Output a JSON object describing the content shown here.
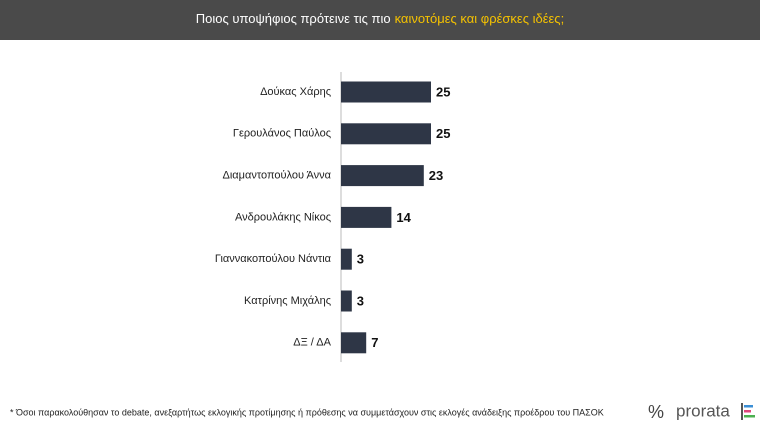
{
  "chart_data": {
    "type": "bar",
    "orientation": "horizontal",
    "title": "Ποιος υποψήφιος πρότεινε τις πιο",
    "title_highlight": "καινοτόμες και φρέσκες ιδέες;",
    "categories": [
      "Δούκας Χάρης",
      "Γερουλάνος Παύλος",
      "Διαμαντοπούλου Άννα",
      "Ανδρουλάκης Νίκος",
      "Γιαννακοπούλου Νάντια",
      "Κατρίνης Μιχάλης",
      "ΔΞ / ΔΑ"
    ],
    "values": [
      25,
      25,
      23,
      14,
      3,
      3,
      7
    ],
    "color": "#2e3646",
    "footnote": "* Όσοι παρακολούθησαν το debate, ανεξαρτήτως εκλογικής προτίμησης ή πρόθεσης να συμμετάσχουν στις εκλογές ανάδειξης προέδρου του ΠΑΣΟΚ",
    "logo": "prorata"
  }
}
